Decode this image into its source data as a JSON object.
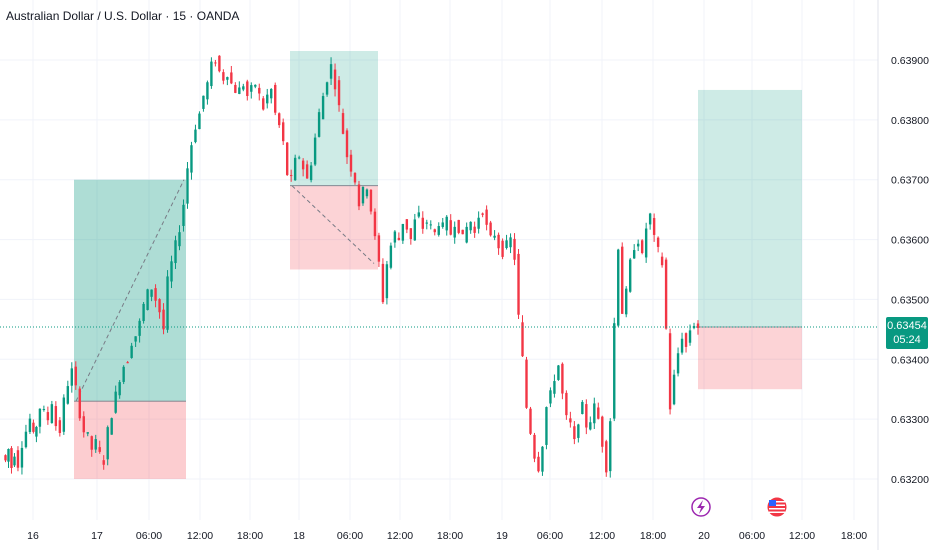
{
  "title": "Australian Dollar / U.S. Dollar · 15 · OANDA",
  "last_price": "0.63454",
  "countdown": "05:24",
  "chart_data": {
    "type": "candlestick",
    "title": "Australian Dollar / U.S. Dollar · 15 · OANDA",
    "y_ticks": [
      "0.63900",
      "0.63800",
      "0.63700",
      "0.63600",
      "0.63500",
      "0.63400",
      "0.63300",
      "0.63200"
    ],
    "x_ticks": [
      "16",
      "17",
      "06:00",
      "12:00",
      "18:00",
      "18",
      "06:00",
      "12:00",
      "18:00",
      "19",
      "06:00",
      "12:00",
      "18:00",
      "20",
      "06:00",
      "12:00",
      "18:00"
    ],
    "ylim": [
      0.6319,
      0.6397
    ],
    "last_price": 0.63454,
    "colors": {
      "up": "#089981",
      "down": "#f23645",
      "tp_zone": "#089981",
      "sl_zone": "#f23645"
    },
    "close_path": [
      [
        0,
        0.6324
      ],
      [
        3,
        0.6323
      ],
      [
        6,
        0.6325
      ],
      [
        9,
        0.6322
      ],
      [
        12,
        0.63245
      ],
      [
        16,
        0.63225
      ],
      [
        20,
        0.6326
      ],
      [
        24,
        0.6328
      ],
      [
        28,
        0.633
      ],
      [
        31,
        0.6327
      ],
      [
        34,
        0.6329
      ],
      [
        38,
        0.6332
      ],
      [
        42,
        0.6331
      ],
      [
        46,
        0.633
      ],
      [
        50,
        0.6333
      ],
      [
        54,
        0.6329
      ],
      [
        58,
        0.6328
      ],
      [
        62,
        0.6333
      ],
      [
        66,
        0.6336
      ],
      [
        70,
        0.6338
      ],
      [
        74,
        0.6335
      ],
      [
        78,
        0.6331
      ],
      [
        82,
        0.6328
      ],
      [
        86,
        0.6327
      ],
      [
        90,
        0.6325
      ],
      [
        94,
        0.6326
      ],
      [
        98,
        0.6324
      ],
      [
        102,
        0.6323
      ],
      [
        106,
        0.6328
      ],
      [
        110,
        0.6331
      ],
      [
        114,
        0.6334
      ],
      [
        118,
        0.6337
      ],
      [
        122,
        0.6339
      ],
      [
        126,
        0.634
      ],
      [
        130,
        0.6343
      ],
      [
        134,
        0.6344
      ],
      [
        138,
        0.6346
      ],
      [
        142,
        0.6349
      ],
      [
        146,
        0.6351
      ],
      [
        150,
        0.6352
      ],
      [
        154,
        0.635
      ],
      [
        158,
        0.6348
      ],
      [
        162,
        0.6345
      ],
      [
        166,
        0.6353
      ],
      [
        170,
        0.6356
      ],
      [
        174,
        0.6359
      ],
      [
        178,
        0.6362
      ],
      [
        182,
        0.6366
      ],
      [
        186,
        0.6372
      ],
      [
        190,
        0.6376
      ],
      [
        194,
        0.6379
      ],
      [
        198,
        0.6381
      ],
      [
        202,
        0.6384
      ],
      [
        206,
        0.6386
      ],
      [
        210,
        0.6389
      ],
      [
        214,
        0.639
      ],
      [
        218,
        0.6388
      ],
      [
        222,
        0.6387
      ],
      [
        226,
        0.6388
      ],
      [
        230,
        0.6386
      ],
      [
        234,
        0.6385
      ],
      [
        238,
        0.6385
      ],
      [
        242,
        0.6386
      ],
      [
        246,
        0.6384
      ],
      [
        250,
        0.6385
      ],
      [
        254,
        0.6386
      ],
      [
        258,
        0.6384
      ],
      [
        262,
        0.6382
      ],
      [
        266,
        0.6384
      ],
      [
        270,
        0.6385
      ],
      [
        274,
        0.6381
      ],
      [
        278,
        0.6379
      ],
      [
        282,
        0.6376
      ],
      [
        286,
        0.6371
      ],
      [
        290,
        0.637
      ],
      [
        294,
        0.6373
      ],
      [
        298,
        0.6374
      ],
      [
        302,
        0.6372
      ],
      [
        306,
        0.637
      ],
      [
        310,
        0.6373
      ],
      [
        314,
        0.6377
      ],
      [
        318,
        0.6381
      ],
      [
        322,
        0.6384
      ],
      [
        326,
        0.6387
      ],
      [
        330,
        0.6389
      ],
      [
        334,
        0.6386
      ],
      [
        338,
        0.6382
      ],
      [
        342,
        0.6378
      ],
      [
        346,
        0.6374
      ],
      [
        350,
        0.6372
      ],
      [
        354,
        0.637
      ],
      [
        358,
        0.6366
      ],
      [
        362,
        0.6368
      ],
      [
        366,
        0.6369
      ],
      [
        370,
        0.6365
      ],
      [
        374,
        0.636
      ],
      [
        378,
        0.6356
      ],
      [
        382,
        0.635
      ],
      [
        386,
        0.6356
      ],
      [
        390,
        0.6359
      ],
      [
        394,
        0.6361
      ],
      [
        398,
        0.636
      ],
      [
        402,
        0.6363
      ],
      [
        406,
        0.6362
      ],
      [
        410,
        0.636
      ],
      [
        414,
        0.6363
      ],
      [
        418,
        0.6364
      ],
      [
        422,
        0.6362
      ],
      [
        426,
        0.6363
      ],
      [
        430,
        0.6362
      ],
      [
        434,
        0.6361
      ],
      [
        438,
        0.6363
      ],
      [
        442,
        0.6362
      ],
      [
        446,
        0.6363
      ],
      [
        450,
        0.6361
      ],
      [
        454,
        0.6363
      ],
      [
        458,
        0.6362
      ],
      [
        462,
        0.636
      ],
      [
        466,
        0.6362
      ],
      [
        470,
        0.6363
      ],
      [
        474,
        0.6361
      ],
      [
        478,
        0.6364
      ],
      [
        482,
        0.6365
      ],
      [
        486,
        0.6362
      ],
      [
        490,
        0.636
      ],
      [
        494,
        0.6361
      ],
      [
        498,
        0.6359
      ],
      [
        502,
        0.6358
      ],
      [
        506,
        0.6359
      ],
      [
        510,
        0.636
      ],
      [
        514,
        0.6357
      ],
      [
        518,
        0.6347
      ],
      [
        522,
        0.634
      ],
      [
        526,
        0.6332
      ],
      [
        530,
        0.6328
      ],
      [
        534,
        0.6324
      ],
      [
        538,
        0.6322
      ],
      [
        542,
        0.6326
      ],
      [
        546,
        0.6332
      ],
      [
        550,
        0.6334
      ],
      [
        554,
        0.6337
      ],
      [
        558,
        0.6339
      ],
      [
        562,
        0.6334
      ],
      [
        566,
        0.633
      ],
      [
        570,
        0.6329
      ],
      [
        574,
        0.6326
      ],
      [
        578,
        0.633
      ],
      [
        582,
        0.6332
      ],
      [
        586,
        0.6329
      ],
      [
        590,
        0.633
      ],
      [
        594,
        0.6332
      ],
      [
        598,
        0.633
      ],
      [
        602,
        0.6326
      ],
      [
        606,
        0.6322
      ],
      [
        610,
        0.633
      ],
      [
        614,
        0.6346
      ],
      [
        618,
        0.6359
      ],
      [
        622,
        0.6348
      ],
      [
        626,
        0.6351
      ],
      [
        630,
        0.6356
      ],
      [
        634,
        0.6359
      ],
      [
        638,
        0.636
      ],
      [
        642,
        0.6357
      ],
      [
        646,
        0.6362
      ],
      [
        650,
        0.6364
      ],
      [
        654,
        0.636
      ],
      [
        658,
        0.6358
      ],
      [
        662,
        0.6356
      ],
      [
        666,
        0.6345
      ],
      [
        670,
        0.6332
      ],
      [
        674,
        0.6337
      ],
      [
        678,
        0.6341
      ],
      [
        682,
        0.6344
      ],
      [
        686,
        0.6342
      ],
      [
        690,
        0.6345
      ],
      [
        694,
        0.6346
      ],
      [
        698,
        0.63454
      ]
    ],
    "positions": [
      {
        "name": "long-position-1",
        "entry": 0.6333,
        "target": 0.637,
        "stop": 0.632
      },
      {
        "name": "short-position",
        "entry": 0.6369,
        "target": 0.63915,
        "stop": 0.6355
      },
      {
        "name": "long-position-2",
        "entry": 0.63454,
        "target": 0.6385,
        "stop": 0.6335
      }
    ],
    "event_icons": [
      "flash-event-icon",
      "us-flag-event-icon"
    ]
  }
}
